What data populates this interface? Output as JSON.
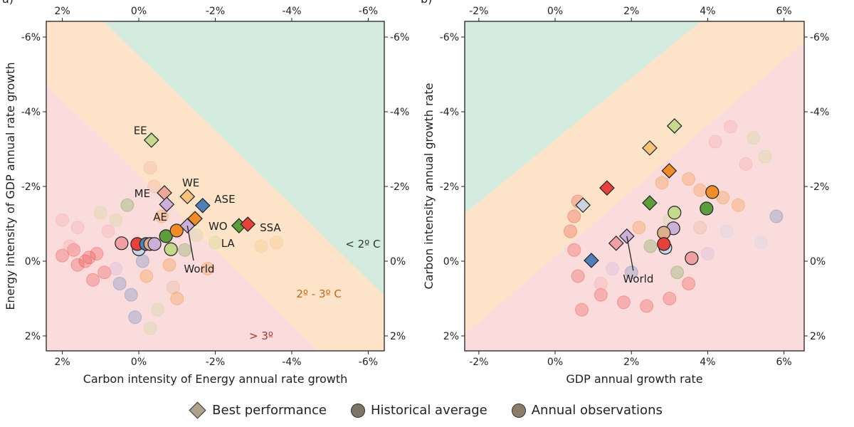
{
  "colors": {
    "red": "#e8403a",
    "orange": "#f28c28",
    "lightorange": "#f7c27a",
    "lightgreen": "#c5d98c",
    "green": "#5c9e3c",
    "blue": "#4f7fb8",
    "lavender": "#cdb0da",
    "pink": "#f0a0a4",
    "salmon": "#eea898",
    "grayblue": "#c9d4dc",
    "tan": "#ddb088",
    "lightblue": "#c8d6ec",
    "region_green": "#d3ecdf",
    "region_orange": "#fde3c7",
    "region_pink": "#fbdcdd"
  },
  "chart_data": [
    {
      "type": "scatter",
      "panel_label": "a)",
      "xlabel": "Carbon intensity of Energy annual rate growth",
      "ylabel": "Energy intensity of GDP annual rate growth",
      "xlim": [
        2.42,
        -6.42
      ],
      "ylim": [
        -6.42,
        2.4
      ],
      "x_reversed": true,
      "y_reversed": true,
      "xticks": [
        2,
        0,
        -2,
        -4,
        -6
      ],
      "yticks": [
        -6,
        -4,
        -2,
        0,
        2
      ],
      "tick_suffix": "%",
      "regions": [
        {
          "name": "> 3º",
          "color": "region_pink",
          "polygon": [
            [
              2.42,
              -6.42
            ],
            [
              -6.42,
              -6.42
            ],
            [
              -6.42,
              2.4
            ],
            [
              2.42,
              2.4
            ]
          ],
          "label": "> 3º",
          "label_x": -3.2,
          "label_y": 2.0,
          "label_color": "#b03030"
        },
        {
          "name": "2º - 3º C",
          "color": "region_orange",
          "polygon": [
            [
              4.12,
              -6.42
            ],
            [
              -6.42,
              -6.42
            ],
            [
              -6.42,
              4.12
            ]
          ],
          "label": "2º - 3º C",
          "label_x": -4.71,
          "label_y": 0.88,
          "label_color": "#c8641a"
        },
        {
          "name": "< 2º C",
          "color": "region_green",
          "polygon": [
            [
              0.92,
              -6.42
            ],
            [
              -6.42,
              -6.42
            ],
            [
              -6.42,
              0.92
            ]
          ],
          "label": "< 2º C",
          "label_x": -5.86,
          "label_y": -0.46,
          "label_color": "#333333"
        }
      ],
      "best_performance": [
        {
          "x": -0.33,
          "y": -3.24,
          "color": "lightgreen"
        },
        {
          "x": -0.67,
          "y": -1.83,
          "color": "salmon"
        },
        {
          "x": -0.73,
          "y": -1.52,
          "color": "lavender"
        },
        {
          "x": -1.27,
          "y": -1.73,
          "color": "lightorange"
        },
        {
          "x": -1.67,
          "y": -1.49,
          "color": "blue"
        },
        {
          "x": -1.47,
          "y": -1.14,
          "color": "orange"
        },
        {
          "x": -1.27,
          "y": -0.95,
          "color": "lavender"
        },
        {
          "x": -2.62,
          "y": -0.95,
          "color": "green"
        },
        {
          "x": -2.85,
          "y": -0.99,
          "color": "red"
        }
      ],
      "historical_average": [
        {
          "x": 0.45,
          "y": -0.48,
          "color": "pink"
        },
        {
          "x": 0.0,
          "y": -0.32,
          "color": "lightblue"
        },
        {
          "x": 0.04,
          "y": -0.46,
          "color": "red"
        },
        {
          "x": -0.19,
          "y": -0.46,
          "color": "blue"
        },
        {
          "x": -0.3,
          "y": -0.46,
          "color": "tan"
        },
        {
          "x": -0.41,
          "y": -0.46,
          "color": "lavender"
        },
        {
          "x": -0.71,
          "y": -0.67,
          "color": "green"
        },
        {
          "x": -0.99,
          "y": -0.82,
          "color": "orange"
        },
        {
          "x": -0.84,
          "y": -0.32,
          "color": "lightgreen"
        }
      ],
      "annual_observations": [
        {
          "x": 1.6,
          "y": 0.1,
          "color": "red"
        },
        {
          "x": 1.4,
          "y": 0.0,
          "color": "red"
        },
        {
          "x": 1.3,
          "y": -0.1,
          "color": "red"
        },
        {
          "x": 1.1,
          "y": -0.2,
          "color": "red"
        },
        {
          "x": 1.7,
          "y": -0.3,
          "color": "red"
        },
        {
          "x": 2.0,
          "y": -0.15,
          "color": "red"
        },
        {
          "x": 0.9,
          "y": 0.3,
          "color": "red"
        },
        {
          "x": 1.2,
          "y": 0.5,
          "color": "red"
        },
        {
          "x": 0.5,
          "y": 0.6,
          "color": "blue"
        },
        {
          "x": 0.2,
          "y": 0.9,
          "color": "blue"
        },
        {
          "x": -0.2,
          "y": 0.4,
          "color": "orange"
        },
        {
          "x": -0.5,
          "y": 1.3,
          "color": "lightgreen"
        },
        {
          "x": -0.3,
          "y": 1.8,
          "color": "lightgreen"
        },
        {
          "x": -0.8,
          "y": 0.1,
          "color": "orange"
        },
        {
          "x": -1.2,
          "y": -0.3,
          "color": "green"
        },
        {
          "x": -0.6,
          "y": -1.2,
          "color": "orange"
        },
        {
          "x": -0.4,
          "y": -2.0,
          "color": "salmon"
        },
        {
          "x": -0.3,
          "y": -2.5,
          "color": "salmon"
        },
        {
          "x": 0.3,
          "y": -1.5,
          "color": "green"
        },
        {
          "x": 0.6,
          "y": -1.1,
          "color": "lightgreen"
        },
        {
          "x": 1.0,
          "y": -1.3,
          "color": "lightgreen"
        },
        {
          "x": -1.5,
          "y": -0.7,
          "color": "lightgreen"
        },
        {
          "x": -1.8,
          "y": 0.2,
          "color": "orange"
        },
        {
          "x": -2.0,
          "y": -0.5,
          "color": "lightgreen"
        },
        {
          "x": -3.2,
          "y": -0.4,
          "color": "lightorange"
        },
        {
          "x": -3.6,
          "y": -0.5,
          "color": "lightorange"
        },
        {
          "x": 0.8,
          "y": -0.8,
          "color": "pink"
        },
        {
          "x": 0.6,
          "y": 0.2,
          "color": "lavender"
        },
        {
          "x": -0.1,
          "y": 0.0,
          "color": "blue"
        },
        {
          "x": -0.9,
          "y": 0.7,
          "color": "tan"
        },
        {
          "x": 1.6,
          "y": -0.9,
          "color": "pink"
        },
        {
          "x": 2.0,
          "y": -1.1,
          "color": "pink"
        },
        {
          "x": 1.8,
          "y": -0.4,
          "color": "pink"
        },
        {
          "x": -1.0,
          "y": 1.0,
          "color": "orange"
        },
        {
          "x": 0.1,
          "y": 1.5,
          "color": "blue"
        }
      ],
      "annotations": [
        {
          "text": "EE",
          "x": -0.04,
          "y": -3.5
        },
        {
          "text": "ME",
          "x": -0.09,
          "y": -1.81
        },
        {
          "text": "WE",
          "x": -1.36,
          "y": -2.1
        },
        {
          "text": "ASE",
          "x": -2.25,
          "y": -1.66
        },
        {
          "text": "AE",
          "x": -0.56,
          "y": -1.18
        },
        {
          "text": "WO",
          "x": -2.07,
          "y": -0.93
        },
        {
          "text": "LA",
          "x": -2.33,
          "y": -0.48
        },
        {
          "text": "SSA",
          "x": -3.44,
          "y": -0.9
        },
        {
          "text": "World",
          "x": -1.58,
          "y": 0.21,
          "leader_from": [
            -1.27,
            -0.95
          ]
        }
      ]
    },
    {
      "type": "scatter",
      "panel_label": "b)",
      "xlabel": "GDP annual growth rate",
      "ylabel": "Carbon intensity annual growth rate",
      "xlim": [
        -2.37,
        6.53
      ],
      "ylim": [
        -6.42,
        2.4
      ],
      "x_reversed": false,
      "y_reversed": true,
      "xticks": [
        -2,
        0,
        2,
        4,
        6
      ],
      "yticks": [
        -6,
        -4,
        -2,
        0,
        2
      ],
      "tick_suffix": "%",
      "regions": [
        {
          "name": "> 3º",
          "color": "region_pink",
          "polygon": [
            [
              -2.37,
              -6.42
            ],
            [
              6.53,
              -6.42
            ],
            [
              6.53,
              2.4
            ],
            [
              -2.37,
              2.4
            ]
          ]
        },
        {
          "name": "2º - 3º C",
          "color": "region_orange",
          "polygon": [
            [
              -2.37,
              -6.42
            ],
            [
              6.53,
              -6.42
            ],
            [
              6.53,
              -5.85
            ],
            [
              -2.37,
              1.96
            ]
          ]
        },
        {
          "name": "< 2º C",
          "color": "region_green",
          "polygon": [
            [
              -2.37,
              -6.42
            ],
            [
              3.82,
              -6.42
            ],
            [
              -2.37,
              -1.28
            ]
          ]
        }
      ],
      "best_performance": [
        {
          "x": 3.13,
          "y": -3.62,
          "color": "lightgreen"
        },
        {
          "x": 2.48,
          "y": -3.03,
          "color": "lightorange"
        },
        {
          "x": 2.99,
          "y": -2.42,
          "color": "orange"
        },
        {
          "x": 1.36,
          "y": -1.96,
          "color": "red"
        },
        {
          "x": 0.73,
          "y": -1.5,
          "color": "grayblue"
        },
        {
          "x": 2.48,
          "y": -1.56,
          "color": "green"
        },
        {
          "x": 1.88,
          "y": -0.67,
          "color": "lavender"
        },
        {
          "x": 1.6,
          "y": -0.48,
          "color": "pink"
        },
        {
          "x": 0.95,
          "y": -0.02,
          "color": "blue"
        }
      ],
      "historical_average": [
        {
          "x": 4.12,
          "y": -1.85,
          "color": "orange"
        },
        {
          "x": 3.97,
          "y": -1.41,
          "color": "green"
        },
        {
          "x": 3.13,
          "y": -1.3,
          "color": "lightgreen"
        },
        {
          "x": 2.89,
          "y": -0.36,
          "color": "lightblue"
        },
        {
          "x": 3.1,
          "y": -0.88,
          "color": "lavender"
        },
        {
          "x": 2.85,
          "y": -0.76,
          "color": "tan"
        },
        {
          "x": 2.85,
          "y": -0.46,
          "color": "red"
        },
        {
          "x": 3.58,
          "y": -0.08,
          "color": "pink"
        }
      ],
      "annual_observations": [
        {
          "x": 0.6,
          "y": -1.6,
          "color": "red"
        },
        {
          "x": 0.5,
          "y": -1.2,
          "color": "red"
        },
        {
          "x": 0.4,
          "y": -0.8,
          "color": "red"
        },
        {
          "x": 0.5,
          "y": -0.3,
          "color": "red"
        },
        {
          "x": 0.6,
          "y": 0.4,
          "color": "red"
        },
        {
          "x": 0.7,
          "y": 1.3,
          "color": "red"
        },
        {
          "x": 1.2,
          "y": 0.9,
          "color": "red"
        },
        {
          "x": 1.8,
          "y": 1.1,
          "color": "red"
        },
        {
          "x": 2.4,
          "y": 1.2,
          "color": "red"
        },
        {
          "x": 3.0,
          "y": 1.0,
          "color": "red"
        },
        {
          "x": 3.5,
          "y": 0.6,
          "color": "red"
        },
        {
          "x": 3.5,
          "y": -2.2,
          "color": "orange"
        },
        {
          "x": 3.8,
          "y": -1.9,
          "color": "orange"
        },
        {
          "x": 4.4,
          "y": -1.7,
          "color": "orange"
        },
        {
          "x": 4.8,
          "y": -1.5,
          "color": "orange"
        },
        {
          "x": 5.2,
          "y": -3.3,
          "color": "lightgreen"
        },
        {
          "x": 5.5,
          "y": -2.8,
          "color": "lightgreen"
        },
        {
          "x": 5.8,
          "y": -1.2,
          "color": "blue"
        },
        {
          "x": 4.6,
          "y": -3.6,
          "color": "pink"
        },
        {
          "x": 4.2,
          "y": -3.2,
          "color": "pink"
        },
        {
          "x": 5.0,
          "y": -2.6,
          "color": "pink"
        },
        {
          "x": 2.8,
          "y": -2.1,
          "color": "orange"
        },
        {
          "x": 2.5,
          "y": -0.4,
          "color": "green"
        },
        {
          "x": 2.0,
          "y": 0.3,
          "color": "blue"
        },
        {
          "x": 1.5,
          "y": 0.2,
          "color": "lavender"
        },
        {
          "x": 3.0,
          "y": -1.1,
          "color": "lightgreen"
        },
        {
          "x": 4.0,
          "y": -0.2,
          "color": "lavender"
        },
        {
          "x": 4.5,
          "y": -0.8,
          "color": "lightblue"
        },
        {
          "x": 1.2,
          "y": 0.6,
          "color": "pink"
        },
        {
          "x": 3.2,
          "y": 0.3,
          "color": "green"
        },
        {
          "x": 5.4,
          "y": -0.5,
          "color": "lightblue"
        },
        {
          "x": 2.2,
          "y": -0.9,
          "color": "orange"
        },
        {
          "x": 3.8,
          "y": -0.9,
          "color": "tan"
        }
      ],
      "annotations": [
        {
          "text": "World",
          "x": 2.18,
          "y": 0.48,
          "leader_from": [
            1.88,
            -0.67
          ]
        }
      ]
    }
  ],
  "legend": {
    "best": "Best performance",
    "historical": "Historical average",
    "annual": "Annual observations"
  }
}
